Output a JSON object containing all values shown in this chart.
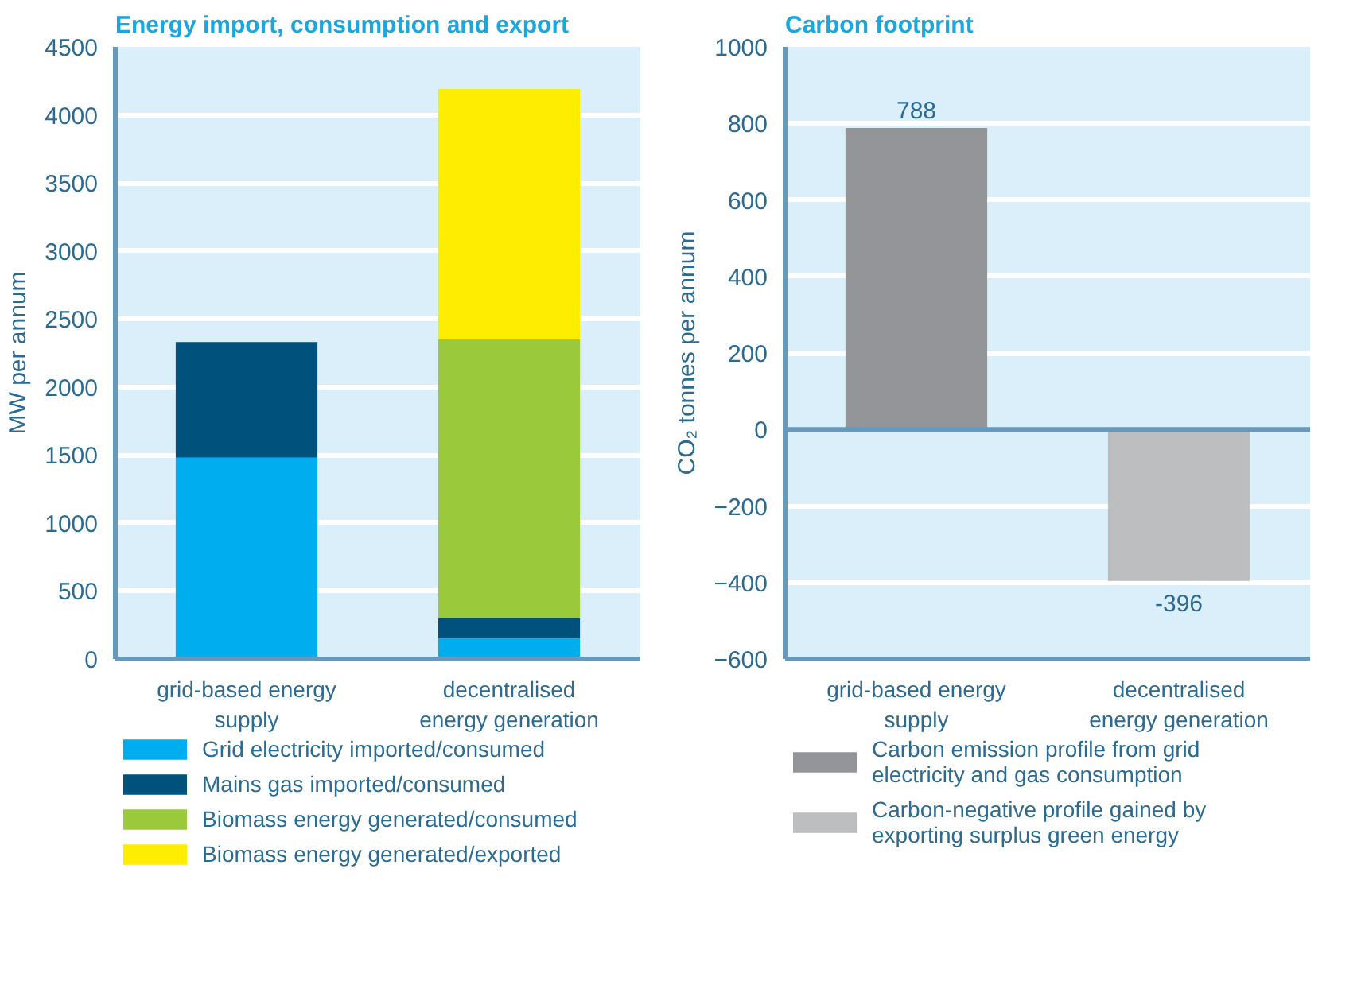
{
  "chart_data": [
    {
      "type": "bar",
      "title": "Energy import, consumption and export",
      "ylabel": "MW per annum",
      "categories": [
        "grid-based energy supply",
        "decentralised energy generation"
      ],
      "stacked": true,
      "ylim": [
        0,
        4500
      ],
      "yticks": [
        0,
        500,
        1000,
        1500,
        2000,
        2500,
        3000,
        3500,
        4000,
        4500
      ],
      "grid": "y",
      "legend": "bottom",
      "series": [
        {
          "name": "Grid electricity imported/consumed",
          "color": "#00aeef",
          "values": [
            1480,
            150
          ]
        },
        {
          "name": "Mains gas imported/consumed",
          "color": "#00527d",
          "values": [
            850,
            150
          ]
        },
        {
          "name": "Biomass energy generated/consumed",
          "color": "#9aca3c",
          "values": [
            0,
            2050
          ]
        },
        {
          "name": "Biomass energy generated/exported",
          "color": "#ffed00",
          "values": [
            0,
            1840
          ]
        }
      ]
    },
    {
      "type": "bar",
      "title": "Carbon footprint",
      "ylabel": "CO₂ tonnes per annum",
      "categories": [
        "grid-based energy supply",
        "decentralised energy generation"
      ],
      "ylim": [
        -600,
        1000
      ],
      "yticks": [
        -600,
        -400,
        -200,
        0,
        200,
        400,
        600,
        800,
        1000
      ],
      "grid": "y",
      "legend": "bottom",
      "data_labels": true,
      "ref_lines": [
        {
          "axis": "y",
          "value": 0,
          "color": "#6699bb"
        }
      ],
      "series": [
        {
          "name": "Carbon emission profile from grid electricity and gas consumption",
          "color": "#939598",
          "values": [
            788,
            null
          ]
        },
        {
          "name": "Carbon-negative profile gained by exporting surplus green energy",
          "color": "#bcbec0",
          "values": [
            null,
            -396
          ]
        }
      ]
    }
  ]
}
